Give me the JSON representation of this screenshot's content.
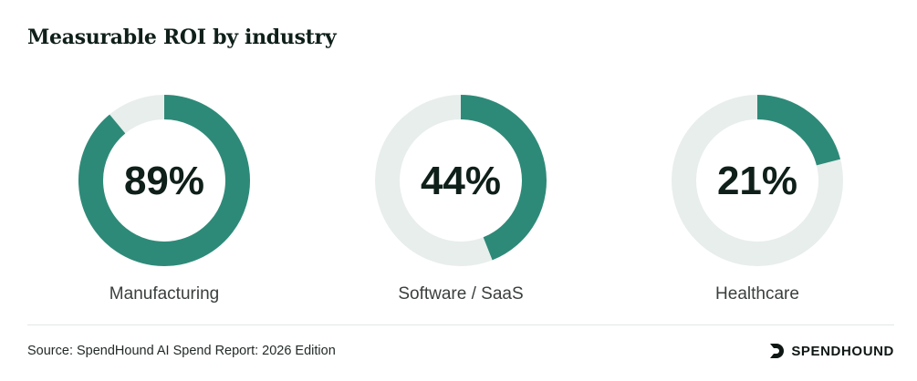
{
  "chart_data": {
    "type": "pie",
    "variant": "donut",
    "title": "Measurable ROI by industry",
    "categories": [
      "Manufacturing",
      "Software / SaaS",
      "Healthcare"
    ],
    "values": [
      89,
      44,
      21
    ],
    "value_labels": [
      "89%",
      "44%",
      "21%"
    ],
    "unit": "%",
    "max": 100
  },
  "colors": {
    "filled": "#2e8a78",
    "track": "#e8eeec",
    "center_text": "#0f1f1a",
    "category_text": "#3a3f3d"
  },
  "footer": {
    "source": "Source: SpendHound AI Spend Report: 2026 Edition",
    "brand_name": "SPENDHOUND",
    "brand_icon": "spendhound-logo-icon"
  }
}
